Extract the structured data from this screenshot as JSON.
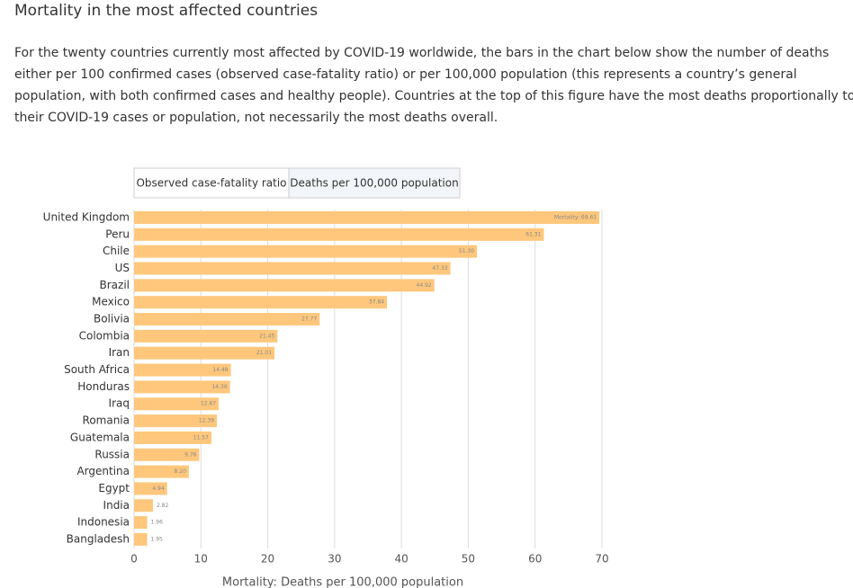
{
  "heading": "Mortality in the most affected countries",
  "description": [
    "For the twenty countries currently most affected by COVID-19 worldwide, the bars in the chart below show the number of deaths",
    "either per 100 confirmed cases (observed case-fatality ratio) or per 100,000 population (this represents a country’s general",
    "population, with both confirmed cases and healthy people). Countries at the top of this figure have the most deaths proportionally to",
    "their COVID-19 cases or population, not necessarily the most deaths overall."
  ],
  "tabs": [
    "Observed case-fatality ratio",
    "Deaths per 100,000 population"
  ],
  "chart_data": {
    "type": "bar",
    "orientation": "horizontal",
    "x_label": "Mortality: Deaths per 100,000 population",
    "categories": [
      "United Kingdom",
      "Peru",
      "Chile",
      "US",
      "Brazil",
      "Mexico",
      "Bolivia",
      "Colombia",
      "Iran",
      "South Africa",
      "Honduras",
      "Iraq",
      "Romania",
      "Guatemala",
      "Russia",
      "Argentina",
      "Egypt",
      "India",
      "Indonesia",
      "Bangladesh"
    ],
    "values": [
      69.61,
      61.31,
      51.3,
      47.33,
      44.92,
      37.84,
      27.77,
      21.45,
      21.01,
      14.48,
      14.36,
      12.67,
      12.39,
      11.57,
      9.76,
      8.2,
      4.94,
      2.82,
      1.96,
      1.95
    ],
    "value_labels": [
      "Mortality: 69.61",
      "61.31",
      "51.30",
      "47.33",
      "44.92",
      "37.84",
      "27.77",
      "21.45",
      "21.01",
      "14.48",
      "14.36",
      "12.67",
      "12.39",
      "11.57",
      "9.76",
      "8.20",
      "4.94",
      "2.82",
      "1.96",
      "1.95"
    ],
    "color": "#fec77c",
    "xlim": [
      0,
      70
    ],
    "xticks": [
      0,
      10,
      20,
      30,
      40,
      50,
      60,
      70
    ],
    "grid": true
  }
}
